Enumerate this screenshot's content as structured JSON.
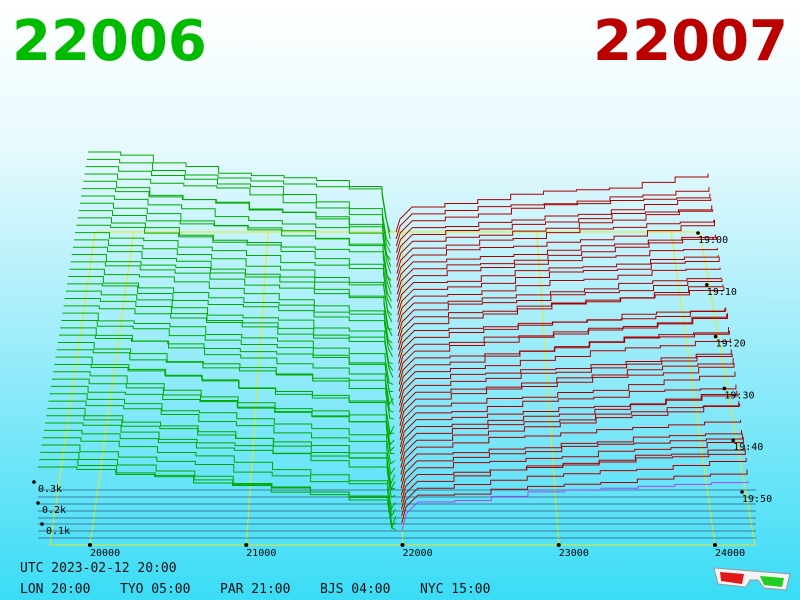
{
  "header": {
    "bid": "22006",
    "ask": "22007"
  },
  "price_axis": {
    "ticks": [
      20000,
      21000,
      22000,
      23000,
      24000
    ]
  },
  "volume_axis": {
    "labels": [
      "0.3k",
      "0.2k",
      "0.1k"
    ]
  },
  "time_axis": {
    "labels": [
      "19:00",
      "19:10",
      "19:20",
      "19:30",
      "19:40",
      "19:50"
    ]
  },
  "footer": {
    "utc": "UTC 2023-02-12 20:00",
    "clocks": [
      "LON 20:00",
      "TYO 05:00",
      "PAR 21:00",
      "BJS 04:00",
      "NYC 15:00"
    ]
  }
}
